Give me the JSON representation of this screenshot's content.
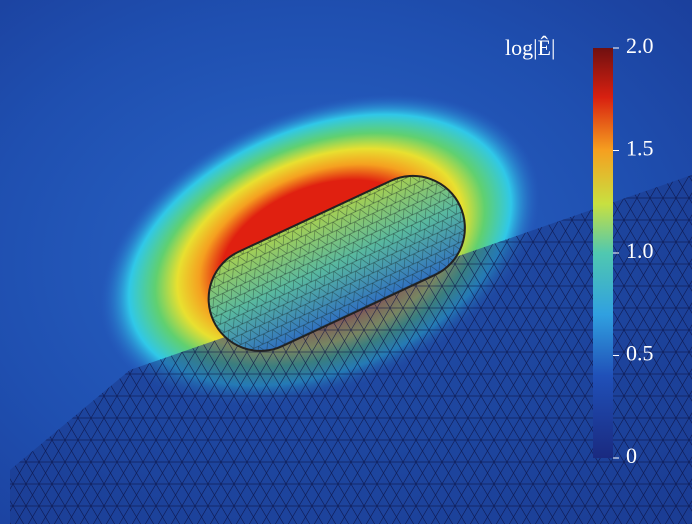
{
  "colorbar": {
    "label": "log|Ê|",
    "lim": [
      0,
      2
    ],
    "ticks": [
      0,
      {
        "value": 0.5,
        "label": "0.5"
      },
      {
        "value": 1,
        "label": "1.0"
      },
      {
        "value": 1.5,
        "label": "1.5"
      },
      {
        "value": 2,
        "label": "2.0"
      }
    ]
  }
}
